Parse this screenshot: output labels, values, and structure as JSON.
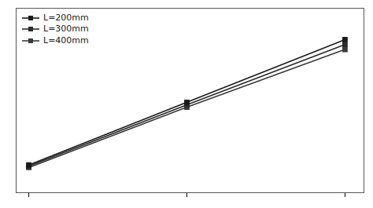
{
  "chart_data": {
    "type": "line",
    "x": [
      0,
      1,
      2
    ],
    "series": [
      {
        "name": "L=200mm",
        "color": "#1a1a1a",
        "values": [
          0.3,
          1.32,
          2.34
        ],
        "marker": "square"
      },
      {
        "name": "L=300mm",
        "color": "#2a2a2a",
        "values": [
          0.28,
          1.28,
          2.26
        ],
        "marker": "square"
      },
      {
        "name": "L=400mm",
        "color": "#3a3a3a",
        "values": [
          0.26,
          1.24,
          2.18
        ],
        "marker": "square"
      }
    ],
    "xlim": [
      -0.08,
      2.12
    ],
    "ylim": [
      -0.15,
      2.85
    ],
    "xticks": [
      0,
      1,
      2
    ],
    "yticks": [],
    "tick_labels": false,
    "legend": "upper left"
  }
}
